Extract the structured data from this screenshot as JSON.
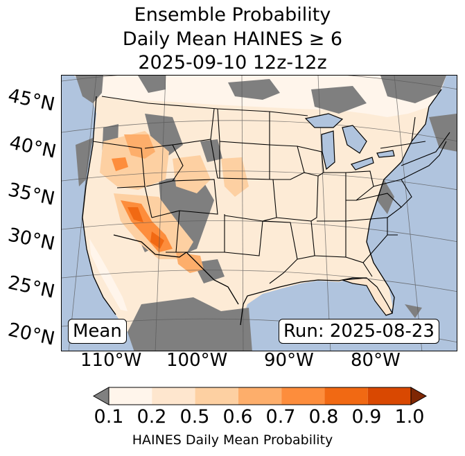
{
  "title": {
    "line1": "Ensemble Probability",
    "line2": "Daily Mean HAINES ≥ 6",
    "line3": "2025-09-10 12z-12z"
  },
  "map": {
    "lat_labels": [
      "45°N",
      "40°N",
      "35°N",
      "30°N",
      "25°N",
      "20°N"
    ],
    "lon_labels": [
      "110°W",
      "100°W",
      "90°W",
      "80°W"
    ],
    "mean_label": "Mean",
    "run_label": "Run: 2025-08-23",
    "colors": {
      "ocean": "#b0c4de",
      "no_data": "#7f7f7f",
      "land_low": "#fff5eb"
    }
  },
  "colorbar": {
    "ticks": [
      "0.1",
      "0.2",
      "0.5",
      "0.6",
      "0.7",
      "0.8",
      "0.9",
      "1.0"
    ],
    "colors": [
      "#fff5eb",
      "#fee6ce",
      "#fdd0a2",
      "#fdae6b",
      "#fd8d3c",
      "#f16913",
      "#d94801",
      "#a63603"
    ],
    "under_color": "#808080",
    "over_color": "#7f2704",
    "label": "HAINES Daily Mean Probability"
  }
}
